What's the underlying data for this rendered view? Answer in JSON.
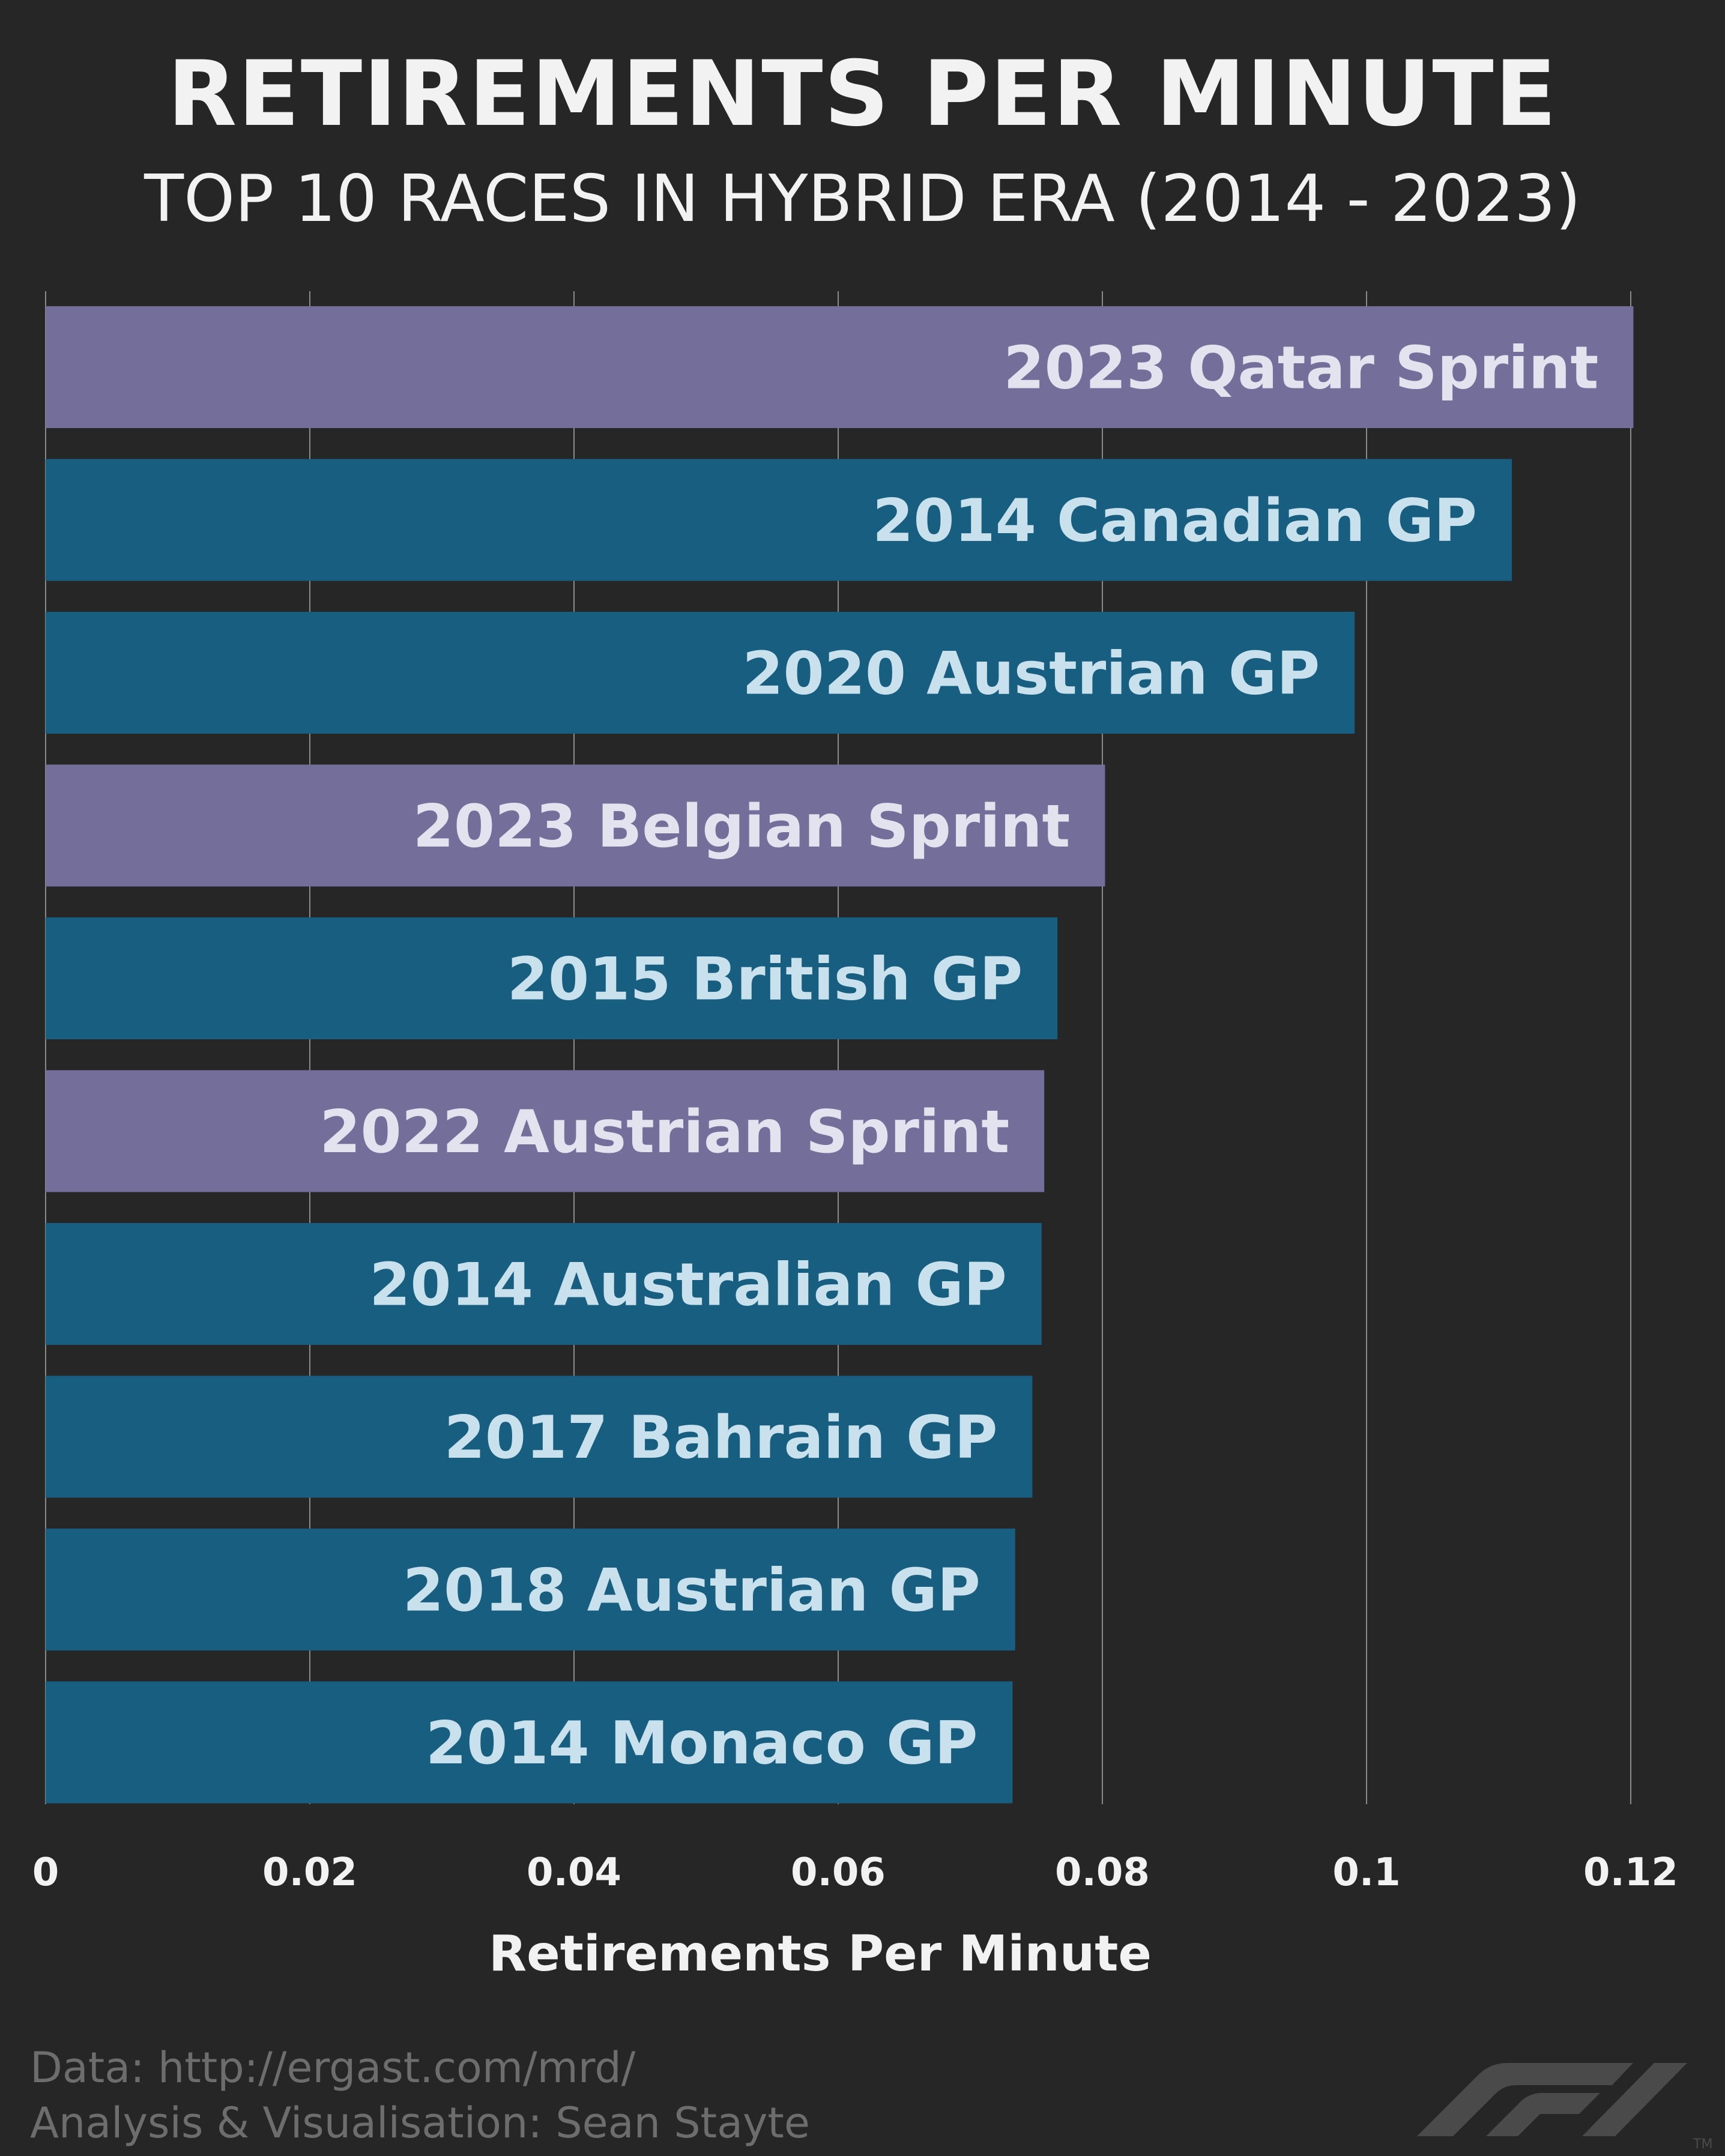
{
  "header": {
    "title": "RETIREMENTS PER MINUTE",
    "subtitle": "TOP 10 RACES IN HYBRID ERA (2014 - 2023)"
  },
  "colors": {
    "background": "#262626",
    "sprint_bar": "#736e9a",
    "gp_bar": "#175e80",
    "sprint_label": "#e3e2ef",
    "gp_label": "#c9e1ec",
    "gridline": "#8a8a8a",
    "text": "#f2f2f2",
    "muted": "#6d6d6d"
  },
  "chart_data": {
    "type": "bar",
    "orientation": "horizontal",
    "categories": [
      "2023 Qatar Sprint",
      "2014 Canadian GP",
      "2020 Austrian GP",
      "2023 Belgian Sprint",
      "2015 British GP",
      "2022 Austrian Sprint",
      "2014 Australian GP",
      "2017 Bahrain GP",
      "2018 Austrian GP",
      "2014 Monaco GP"
    ],
    "values": [
      0.1202,
      0.111,
      0.0991,
      0.0802,
      0.0766,
      0.0756,
      0.0754,
      0.0747,
      0.0734,
      0.0732
    ],
    "kinds": [
      "sprint",
      "gp",
      "gp",
      "sprint",
      "gp",
      "sprint",
      "gp",
      "gp",
      "gp",
      "gp"
    ],
    "xlabel": "Retirements Per Minute",
    "xlim": [
      0,
      0.12
    ],
    "xticks": [
      0,
      0.02,
      0.04,
      0.06,
      0.08,
      0.1,
      0.12
    ],
    "xtick_labels": [
      "0",
      "0.02",
      "0.04",
      "0.06",
      "0.08",
      "0.1",
      "0.12"
    ],
    "grid": true
  },
  "footer": {
    "data_source": "Data: http://ergast.com/mrd/",
    "credit": "Analysis & Visualisation: Sean Stayte",
    "logo": "F1",
    "logo_mark": "TM"
  }
}
